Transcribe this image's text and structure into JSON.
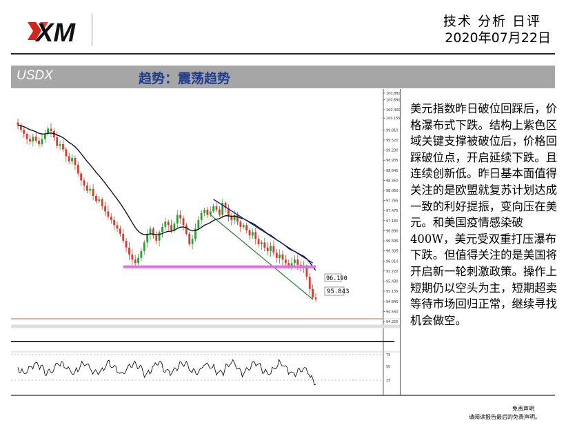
{
  "header": {
    "logo_text": "XM",
    "report_title": "技术 分析 日评",
    "date": "2020年07月22日"
  },
  "band": {
    "symbol": "USDX",
    "trend": "趋势：震荡趋势"
  },
  "chart_data": {
    "type": "candlestick",
    "price_axis_ticks": [
      "100.880",
      "100.690",
      "100.400",
      "100.155",
      "99.810",
      "99.520",
      "99.230",
      "98.935",
      "98.640",
      "98.350",
      "98.060",
      "97.765",
      "97.475",
      "97.180",
      "96.890",
      "96.595",
      "96.305",
      "96.010",
      "95.720",
      "95.430",
      "95.135",
      "94.840",
      "94.550",
      "94.255"
    ],
    "level_labels": [
      "96.190",
      "95.843"
    ],
    "oscillator_ticks": [
      "75",
      "50",
      "25"
    ],
    "colors": {
      "up_candle": "#2e9e2e",
      "down_candle": "#d93a2a",
      "moving_average": "#111111",
      "channel_upper": "#1a237e",
      "channel_lower": "#2e7d32",
      "support_zone": "#e16ee6"
    },
    "closes": [
      99.95,
      99.82,
      99.7,
      99.55,
      99.48,
      99.62,
      99.5,
      99.4,
      99.55,
      99.7,
      99.85,
      99.78,
      99.6,
      99.35,
      99.4,
      99.25,
      99.05,
      98.9,
      99.0,
      98.8,
      98.55,
      98.35,
      98.2,
      98.05,
      98.1,
      97.9,
      97.75,
      97.8,
      97.6,
      97.45,
      97.3,
      97.2,
      97.05,
      96.95,
      96.8,
      96.6,
      96.4,
      96.2,
      96.05,
      95.95,
      96.1,
      96.3,
      96.55,
      96.8,
      96.95,
      96.75,
      96.6,
      96.85,
      97.0,
      97.15,
      97.05,
      96.9,
      97.1,
      97.35,
      97.25,
      97.05,
      96.8,
      96.5,
      96.65,
      96.95,
      97.2,
      97.4,
      97.5,
      97.35,
      97.45,
      97.6,
      97.5,
      97.35,
      97.7,
      97.55,
      97.3,
      97.2,
      97.35,
      97.15,
      97.0,
      97.05,
      96.9,
      96.75,
      96.85,
      96.65,
      96.5,
      96.55,
      96.4,
      96.3,
      96.45,
      96.25,
      96.1,
      96.2,
      96.05,
      95.95,
      95.85,
      95.95,
      96.05,
      95.9,
      95.8,
      95.85,
      95.55,
      95.2,
      94.95,
      94.9
    ]
  },
  "commentary": "美元指数昨日破位回踩后，价格瀑布式下跌。结构上紫色区域关键支撑被破位后，价格回踩破位点，开启延续下跌。且连续创新低。昨日基本面值得关注的是欧盟就复苏计划达成一致的利好提振，变向压在美元。和美国疫情感染破400W，美元受双重打压瀑布下跌。但值得关注的是美国将开启新一轮刺激政策。操作上短期仍以空头为主，短期超卖等待市场回归正常，继续寻找机会做空。",
  "disclaimer": {
    "title": "免责声明",
    "note": "请阅读报告最后的免责声明。"
  }
}
